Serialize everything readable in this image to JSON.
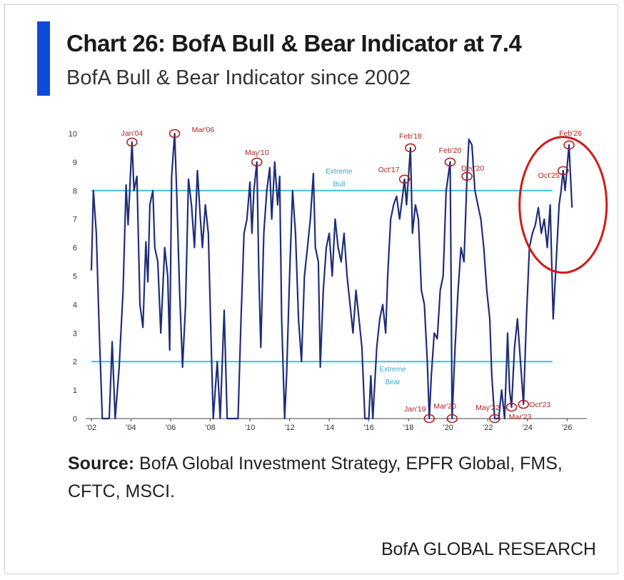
{
  "header": {
    "title": "Chart 26: BofA Bull & Bear Indicator at 7.4",
    "subtitle": "BofA Bull & Bear Indicator since 2002"
  },
  "footer": {
    "source_label": "Source:",
    "source_text": "BofA Global Investment Strategy, EPFR Global, FMS, CFTC, MSCI.",
    "brand": "BofA GLOBAL RESEARCH"
  },
  "colors": {
    "accent": "#0d4ad8",
    "series": "#1f2e7a",
    "threshold": "#3ec1dd",
    "annotation": "#b22222"
  },
  "chart_data": {
    "type": "line",
    "ylim": [
      0,
      10
    ],
    "yticks": [
      0,
      1,
      2,
      3,
      4,
      5,
      6,
      7,
      8,
      9,
      10
    ],
    "xlim": [
      2002,
      2027
    ],
    "xticks": [
      "'02",
      "'04",
      "'06",
      "'08",
      "'10",
      "'12",
      "'14",
      "'16",
      "'18",
      "'20",
      "'22",
      "'24",
      "'26"
    ],
    "grid": false,
    "legend": "none",
    "thresholds": [
      {
        "label": "Extreme Bull",
        "value": 8
      },
      {
        "label": "Extreme Bear",
        "value": 2
      }
    ],
    "annotations": [
      {
        "label": "Jan'04",
        "x": 2004.05,
        "y": 9.7
      },
      {
        "label": "Mar'06",
        "x": 2006.2,
        "y": 10.0
      },
      {
        "label": "May'10",
        "x": 2010.35,
        "y": 9.0
      },
      {
        "label": "Oct'17",
        "x": 2017.8,
        "y": 8.4
      },
      {
        "label": "Feb'18",
        "x": 2018.1,
        "y": 9.5
      },
      {
        "label": "Jan'19",
        "x": 2019.05,
        "y": 0.0
      },
      {
        "label": "Mar'20",
        "x": 2020.2,
        "y": 0.0
      },
      {
        "label": "Feb'20",
        "x": 2020.1,
        "y": 9.0
      },
      {
        "label": "Dec'20",
        "x": 2020.95,
        "y": 8.5
      },
      {
        "label": "May'22",
        "x": 2022.35,
        "y": 0.0
      },
      {
        "label": "Mar'23",
        "x": 2023.2,
        "y": 0.4
      },
      {
        "label": "Oct'23",
        "x": 2023.8,
        "y": 0.5
      },
      {
        "label": "Oct'25",
        "x": 2025.8,
        "y": 8.7
      },
      {
        "label": "Feb'26",
        "x": 2026.1,
        "y": 9.6
      }
    ],
    "highlight": {
      "x": 2025.8,
      "y": 7.5
    },
    "series": [
      {
        "values": [
          [
            2002.0,
            5.2
          ],
          [
            2002.1,
            8.0
          ],
          [
            2002.25,
            6.5
          ],
          [
            2002.4,
            3.0
          ],
          [
            2002.55,
            0.0
          ],
          [
            2002.9,
            0.0
          ],
          [
            2003.05,
            2.7
          ],
          [
            2003.2,
            0.0
          ],
          [
            2003.4,
            1.8
          ],
          [
            2003.6,
            4.5
          ],
          [
            2003.75,
            8.2
          ],
          [
            2003.85,
            6.8
          ],
          [
            2004.05,
            9.7
          ],
          [
            2004.15,
            8.0
          ],
          [
            2004.3,
            8.5
          ],
          [
            2004.45,
            4.0
          ],
          [
            2004.6,
            3.2
          ],
          [
            2004.75,
            6.2
          ],
          [
            2004.85,
            4.8
          ],
          [
            2004.95,
            7.5
          ],
          [
            2005.1,
            8.0
          ],
          [
            2005.2,
            6.0
          ],
          [
            2005.35,
            5.5
          ],
          [
            2005.5,
            3.0
          ],
          [
            2005.7,
            6.0
          ],
          [
            2005.85,
            5.0
          ],
          [
            2005.95,
            2.4
          ],
          [
            2006.05,
            8.5
          ],
          [
            2006.2,
            10.0
          ],
          [
            2006.3,
            8.0
          ],
          [
            2006.45,
            4.5
          ],
          [
            2006.6,
            1.8
          ],
          [
            2006.75,
            4.0
          ],
          [
            2006.9,
            8.4
          ],
          [
            2007.05,
            7.5
          ],
          [
            2007.2,
            6.0
          ],
          [
            2007.35,
            8.7
          ],
          [
            2007.5,
            7.0
          ],
          [
            2007.6,
            6.0
          ],
          [
            2007.75,
            7.5
          ],
          [
            2007.9,
            6.5
          ],
          [
            2008.05,
            2.5
          ],
          [
            2008.15,
            0.0
          ],
          [
            2008.35,
            2.0
          ],
          [
            2008.5,
            0.0
          ],
          [
            2008.7,
            3.8
          ],
          [
            2008.85,
            0.0
          ],
          [
            2009.0,
            0.0
          ],
          [
            2009.4,
            0.0
          ],
          [
            2009.55,
            3.5
          ],
          [
            2009.7,
            6.5
          ],
          [
            2009.85,
            7.0
          ],
          [
            2010.0,
            8.3
          ],
          [
            2010.1,
            6.5
          ],
          [
            2010.2,
            8.0
          ],
          [
            2010.35,
            9.0
          ],
          [
            2010.45,
            5.0
          ],
          [
            2010.55,
            2.5
          ],
          [
            2010.7,
            6.5
          ],
          [
            2010.85,
            8.0
          ],
          [
            2011.0,
            8.8
          ],
          [
            2011.1,
            7.0
          ],
          [
            2011.25,
            9.0
          ],
          [
            2011.4,
            7.5
          ],
          [
            2011.5,
            8.5
          ],
          [
            2011.6,
            3.5
          ],
          [
            2011.75,
            0.0
          ],
          [
            2011.85,
            1.5
          ],
          [
            2012.0,
            5.0
          ],
          [
            2012.15,
            8.0
          ],
          [
            2012.3,
            6.5
          ],
          [
            2012.45,
            3.5
          ],
          [
            2012.6,
            2.0
          ],
          [
            2012.75,
            5.0
          ],
          [
            2012.9,
            6.0
          ],
          [
            2013.05,
            7.0
          ],
          [
            2013.2,
            8.6
          ],
          [
            2013.3,
            6.0
          ],
          [
            2013.45,
            5.5
          ],
          [
            2013.55,
            1.8
          ],
          [
            2013.7,
            4.5
          ],
          [
            2013.85,
            6.0
          ],
          [
            2014.0,
            6.5
          ],
          [
            2014.15,
            5.0
          ],
          [
            2014.3,
            7.0
          ],
          [
            2014.45,
            6.0
          ],
          [
            2014.6,
            5.5
          ],
          [
            2014.75,
            6.5
          ],
          [
            2014.9,
            5.0
          ],
          [
            2015.05,
            4.0
          ],
          [
            2015.2,
            3.0
          ],
          [
            2015.35,
            4.5
          ],
          [
            2015.5,
            3.5
          ],
          [
            2015.65,
            2.5
          ],
          [
            2015.8,
            0.0
          ],
          [
            2016.0,
            0.0
          ],
          [
            2016.1,
            1.5
          ],
          [
            2016.2,
            0.0
          ],
          [
            2016.4,
            2.5
          ],
          [
            2016.55,
            3.5
          ],
          [
            2016.7,
            4.0
          ],
          [
            2016.85,
            3.0
          ],
          [
            2016.95,
            5.0
          ],
          [
            2017.1,
            7.0
          ],
          [
            2017.25,
            7.5
          ],
          [
            2017.4,
            7.8
          ],
          [
            2017.55,
            7.0
          ],
          [
            2017.7,
            7.8
          ],
          [
            2017.8,
            8.4
          ],
          [
            2017.9,
            7.5
          ],
          [
            2018.1,
            9.5
          ],
          [
            2018.2,
            6.5
          ],
          [
            2018.35,
            7.5
          ],
          [
            2018.5,
            7.0
          ],
          [
            2018.65,
            4.5
          ],
          [
            2018.8,
            4.0
          ],
          [
            2018.95,
            2.0
          ],
          [
            2019.05,
            0.0
          ],
          [
            2019.15,
            1.5
          ],
          [
            2019.3,
            3.0
          ],
          [
            2019.45,
            2.8
          ],
          [
            2019.6,
            4.5
          ],
          [
            2019.75,
            5.0
          ],
          [
            2019.9,
            8.0
          ],
          [
            2020.1,
            9.0
          ],
          [
            2020.15,
            5.0
          ],
          [
            2020.2,
            0.0
          ],
          [
            2020.35,
            2.5
          ],
          [
            2020.5,
            4.5
          ],
          [
            2020.65,
            6.0
          ],
          [
            2020.8,
            5.5
          ],
          [
            2020.95,
            8.5
          ],
          [
            2021.05,
            9.8
          ],
          [
            2021.2,
            9.6
          ],
          [
            2021.35,
            8.0
          ],
          [
            2021.5,
            7.5
          ],
          [
            2021.65,
            7.0
          ],
          [
            2021.8,
            6.0
          ],
          [
            2021.95,
            4.5
          ],
          [
            2022.1,
            3.5
          ],
          [
            2022.2,
            1.5
          ],
          [
            2022.35,
            0.0
          ],
          [
            2022.55,
            0.0
          ],
          [
            2022.7,
            1.0
          ],
          [
            2022.85,
            0.0
          ],
          [
            2023.0,
            3.0
          ],
          [
            2023.1,
            1.0
          ],
          [
            2023.2,
            0.4
          ],
          [
            2023.35,
            2.5
          ],
          [
            2023.5,
            3.5
          ],
          [
            2023.65,
            2.0
          ],
          [
            2023.8,
            0.5
          ],
          [
            2023.95,
            3.5
          ],
          [
            2024.1,
            6.0
          ],
          [
            2024.25,
            6.5
          ],
          [
            2024.4,
            6.8
          ],
          [
            2024.55,
            7.4
          ],
          [
            2024.7,
            6.5
          ],
          [
            2024.85,
            7.0
          ],
          [
            2025.0,
            6.0
          ],
          [
            2025.15,
            7.5
          ],
          [
            2025.3,
            3.5
          ],
          [
            2025.45,
            5.5
          ],
          [
            2025.6,
            7.5
          ],
          [
            2025.7,
            8.0
          ],
          [
            2025.8,
            8.7
          ],
          [
            2025.9,
            8.0
          ],
          [
            2026.1,
            9.6
          ],
          [
            2026.25,
            7.4
          ]
        ]
      }
    ]
  }
}
